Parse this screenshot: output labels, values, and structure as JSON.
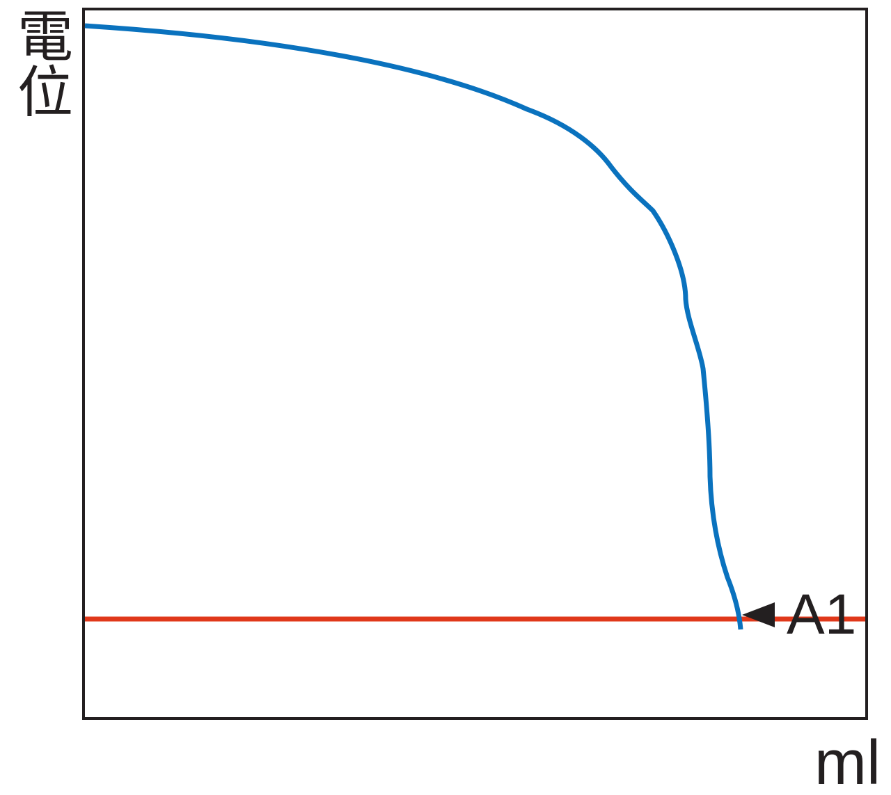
{
  "axes": {
    "y_label": "電位",
    "x_label": "ml"
  },
  "annotation": "A1"
}
